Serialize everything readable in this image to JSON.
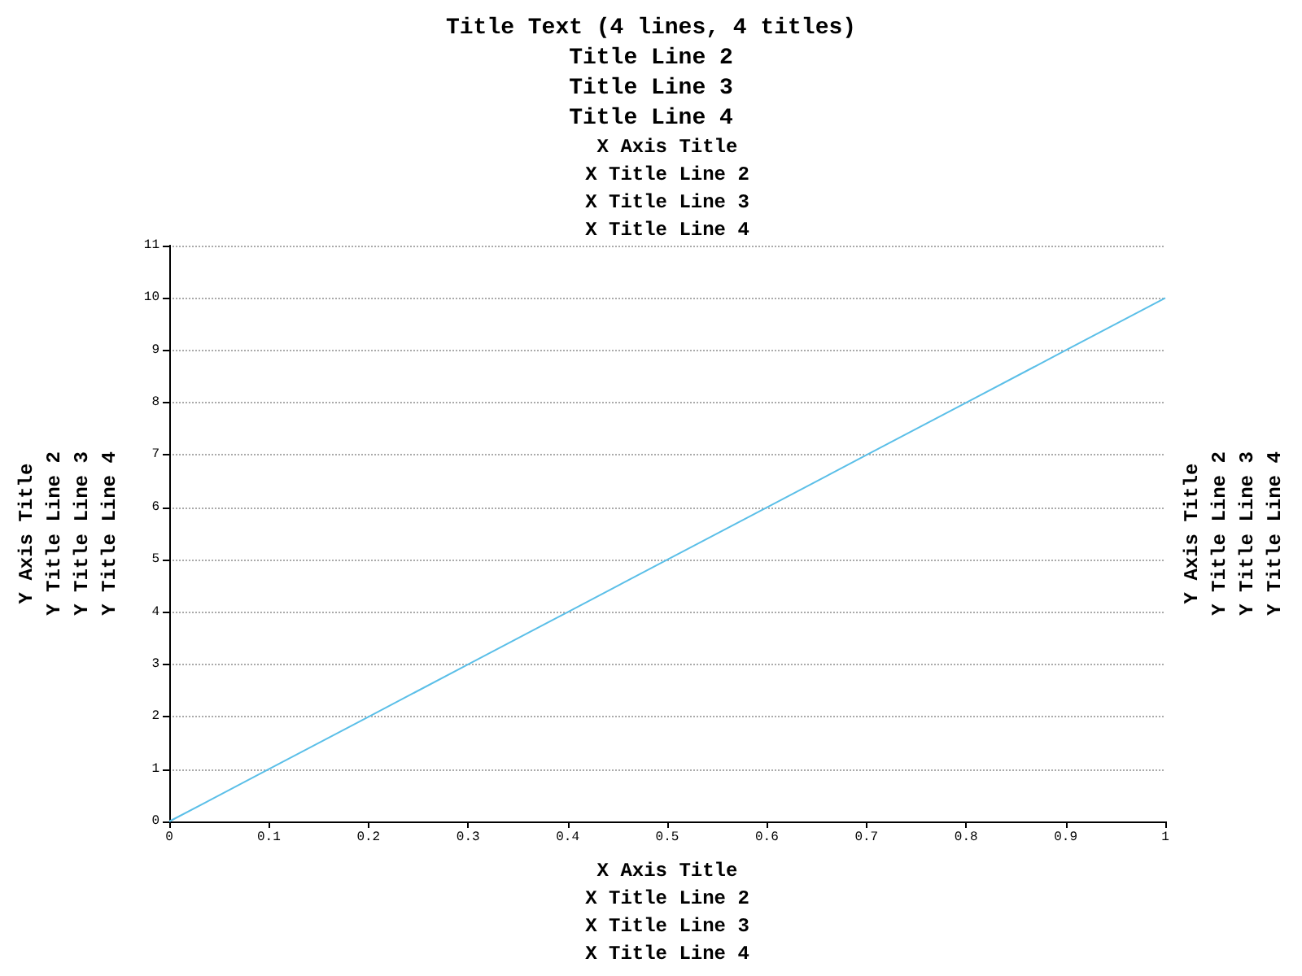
{
  "chart_data": {
    "type": "line",
    "title": "Title Text (4 lines, 4 titles)\nTitle Line 2\nTitle Line 3\nTitle Line 4",
    "xlabel": "X Axis Title\nX Title Line 2\nX Title Line 3\nX Title Line 4",
    "x2label": "X Axis Title\nX Title Line 2\nX Title Line 3\nX Title Line 4",
    "ylabel": "Y Axis Title\nY Title Line 2\nY Title Line 3\nY Title Line 4",
    "y2label": "Y Axis Title\nY Title Line 2\nY Title Line 3\nY Title Line 4",
    "x": [
      0,
      0.1,
      0.2,
      0.3,
      0.4,
      0.5,
      0.6,
      0.7,
      0.8,
      0.9,
      1
    ],
    "series": [
      {
        "color": "#5bbfe8",
        "values": [
          0,
          1,
          2,
          3,
          4,
          5,
          6,
          7,
          8,
          9,
          10
        ]
      }
    ],
    "xlim": [
      0,
      1
    ],
    "xticks": [
      0,
      0.1,
      0.2,
      0.3,
      0.4,
      0.5,
      0.6,
      0.7,
      0.8,
      0.9,
      1
    ],
    "ylim": [
      0,
      11
    ],
    "yticks": [
      0,
      1,
      2,
      3,
      4,
      5,
      6,
      7,
      8,
      9,
      10,
      11
    ],
    "grid": "y",
    "marker": "none",
    "line_style": "solid"
  }
}
